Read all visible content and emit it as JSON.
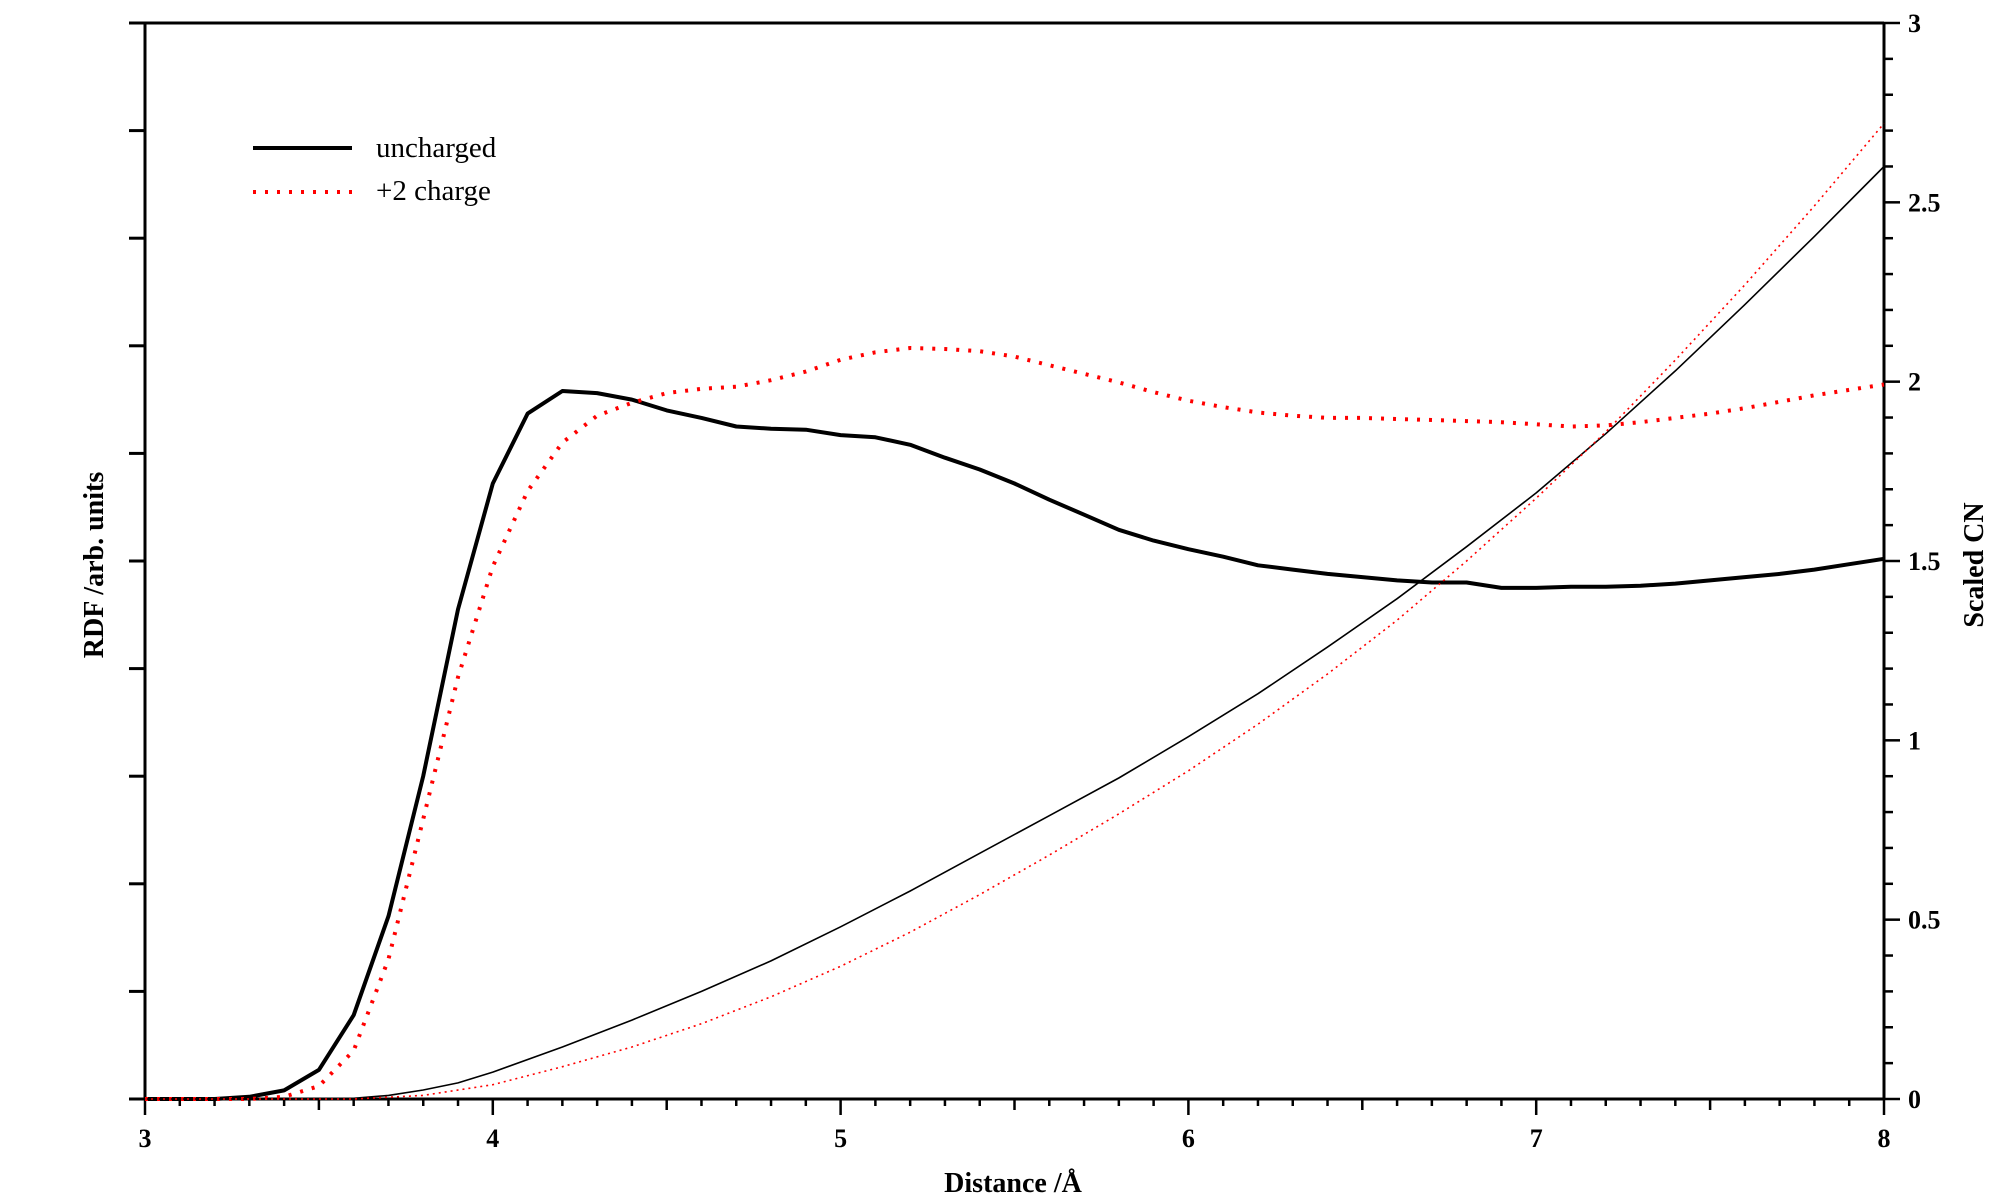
{
  "chart_data": {
    "type": "line",
    "xlabel": "Distance /Å",
    "ylabel_left": "RDF /arb. units",
    "ylabel_right": "Scaled CN",
    "xlim": [
      3,
      8
    ],
    "xticks": [
      "3",
      "4",
      "5",
      "6",
      "7",
      "8"
    ],
    "ylim_left": [
      0,
      10
    ],
    "ylim_right": [
      0,
      3
    ],
    "yticks_right": [
      "0",
      "0.5",
      "1",
      "1.5",
      "2",
      "2.5",
      "3"
    ],
    "left_tick_labels_shown": false,
    "grid": false,
    "legend_position": "top-left",
    "legend": [
      {
        "label": "uncharged",
        "color": "#000000",
        "style": "solid"
      },
      {
        "label": "+2 charge",
        "color": "#ff0000",
        "style": "dotted"
      }
    ],
    "series": [
      {
        "name": "uncharged",
        "axis": "left",
        "color": "#000000",
        "style": "solid",
        "x": [
          3.0,
          3.1,
          3.2,
          3.3,
          3.4,
          3.5,
          3.6,
          3.7,
          3.8,
          3.9,
          4.0,
          4.1,
          4.2,
          4.3,
          4.4,
          4.5,
          4.6,
          4.7,
          4.8,
          4.9,
          5.0,
          5.1,
          5.2,
          5.3,
          5.4,
          5.5,
          5.6,
          5.7,
          5.8,
          5.9,
          6.0,
          6.1,
          6.2,
          6.3,
          6.4,
          6.5,
          6.6,
          6.7,
          6.8,
          6.9,
          7.0,
          7.1,
          7.2,
          7.3,
          7.4,
          7.5,
          7.6,
          7.7,
          7.8,
          7.9,
          8.0
        ],
        "y": [
          0.0,
          0.0,
          0.0,
          0.02,
          0.08,
          0.27,
          0.78,
          1.7,
          3.0,
          4.55,
          5.72,
          6.37,
          6.58,
          6.56,
          6.5,
          6.4,
          6.33,
          6.25,
          6.23,
          6.22,
          6.17,
          6.15,
          6.08,
          5.96,
          5.85,
          5.72,
          5.57,
          5.43,
          5.29,
          5.19,
          5.11,
          5.04,
          4.96,
          4.92,
          4.88,
          4.85,
          4.82,
          4.8,
          4.8,
          4.75,
          4.75,
          4.76,
          4.76,
          4.77,
          4.79,
          4.82,
          4.85,
          4.88,
          4.92,
          4.97,
          5.02
        ]
      },
      {
        "name": "+2 charge",
        "axis": "left",
        "color": "#ff0000",
        "style": "dotted",
        "x": [
          3.0,
          3.1,
          3.2,
          3.3,
          3.4,
          3.5,
          3.6,
          3.7,
          3.8,
          3.9,
          4.0,
          4.1,
          4.2,
          4.3,
          4.4,
          4.5,
          4.6,
          4.7,
          4.8,
          4.9,
          5.0,
          5.1,
          5.2,
          5.3,
          5.4,
          5.5,
          5.6,
          5.7,
          5.8,
          5.9,
          6.0,
          6.1,
          6.2,
          6.3,
          6.4,
          6.5,
          6.6,
          6.7,
          6.8,
          6.9,
          7.0,
          7.1,
          7.2,
          7.3,
          7.4,
          7.5,
          7.6,
          7.7,
          7.8,
          7.9,
          8.0
        ],
        "y": [
          0.0,
          0.0,
          0.0,
          0.0,
          0.02,
          0.12,
          0.45,
          1.3,
          2.6,
          3.92,
          4.95,
          5.65,
          6.1,
          6.35,
          6.47,
          6.56,
          6.6,
          6.62,
          6.68,
          6.76,
          6.87,
          6.94,
          6.98,
          6.97,
          6.95,
          6.9,
          6.82,
          6.74,
          6.66,
          6.57,
          6.49,
          6.43,
          6.38,
          6.35,
          6.33,
          6.33,
          6.32,
          6.31,
          6.3,
          6.29,
          6.27,
          6.25,
          6.26,
          6.29,
          6.33,
          6.37,
          6.42,
          6.48,
          6.54,
          6.59,
          6.64
        ]
      },
      {
        "name": "uncharged",
        "axis": "right",
        "color": "#000000",
        "style": "solid-thin",
        "x": [
          3.0,
          3.2,
          3.4,
          3.6,
          3.7,
          3.8,
          3.9,
          4.0,
          4.2,
          4.4,
          4.6,
          4.8,
          5.0,
          5.2,
          5.4,
          5.6,
          5.8,
          6.0,
          6.2,
          6.4,
          6.6,
          6.8,
          7.0,
          7.2,
          7.4,
          7.6,
          7.8,
          8.0
        ],
        "y": [
          0.0,
          0.0,
          0.0,
          0.002,
          0.01,
          0.025,
          0.045,
          0.075,
          0.145,
          0.22,
          0.3,
          0.385,
          0.48,
          0.58,
          0.685,
          0.79,
          0.895,
          1.01,
          1.13,
          1.26,
          1.395,
          1.54,
          1.69,
          1.855,
          2.03,
          2.215,
          2.405,
          2.6
        ]
      },
      {
        "name": "+2 charge",
        "axis": "right",
        "color": "#ff0000",
        "style": "dotted-thin",
        "x": [
          3.0,
          3.2,
          3.4,
          3.6,
          3.8,
          4.0,
          4.2,
          4.4,
          4.6,
          4.8,
          5.0,
          5.2,
          5.4,
          5.6,
          5.8,
          6.0,
          6.2,
          6.4,
          6.6,
          6.8,
          7.0,
          7.2,
          7.4,
          7.6,
          7.8,
          8.0
        ],
        "y": [
          0.0,
          0.0,
          0.0,
          0.0,
          0.01,
          0.04,
          0.09,
          0.145,
          0.21,
          0.285,
          0.37,
          0.465,
          0.57,
          0.68,
          0.795,
          0.915,
          1.045,
          1.185,
          1.335,
          1.5,
          1.675,
          1.86,
          2.06,
          2.27,
          2.49,
          2.72
        ]
      }
    ]
  }
}
